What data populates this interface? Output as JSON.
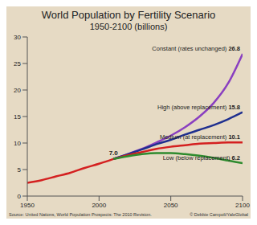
{
  "chart_data": {
    "type": "line",
    "title": "World Population by Fertility Scenario",
    "subtitle": "1950-2100 (billions)",
    "x": [
      1950,
      1960,
      1970,
      1980,
      1990,
      2000,
      2010,
      2020,
      2030,
      2040,
      2050,
      2060,
      2070,
      2080,
      2090,
      2100
    ],
    "series": [
      {
        "color": "#d42020",
        "values": [
          2.5,
          3.0,
          3.7,
          4.4,
          5.3,
          6.1,
          7.0,
          null,
          null,
          null,
          null,
          null,
          null,
          null,
          null,
          null
        ]
      },
      {
        "name": "Constant (rates unchanged)",
        "color": "#8a3fc0",
        "values": [
          null,
          null,
          null,
          null,
          null,
          null,
          7.0,
          7.9,
          8.9,
          10.1,
          11.4,
          13.0,
          15.0,
          17.6,
          21.3,
          26.8
        ]
      },
      {
        "name": "High (above replacement)",
        "color": "#1f2f8f",
        "values": [
          null,
          null,
          null,
          null,
          null,
          null,
          7.0,
          7.9,
          8.8,
          9.8,
          10.6,
          11.6,
          12.5,
          13.4,
          14.5,
          15.8
        ]
      },
      {
        "name": "Medium (at replacement)",
        "color": "#d42020",
        "values": [
          null,
          null,
          null,
          null,
          null,
          null,
          7.0,
          7.7,
          8.3,
          8.9,
          9.3,
          9.6,
          9.9,
          10.0,
          10.1,
          10.1
        ]
      },
      {
        "name": "Low (below replacement)",
        "color": "#2e8b2e",
        "values": [
          null,
          null,
          null,
          null,
          null,
          null,
          7.0,
          7.5,
          7.9,
          8.1,
          8.1,
          7.9,
          7.6,
          7.2,
          6.7,
          6.2
        ]
      }
    ],
    "xlim": [
      1950,
      2100
    ],
    "xticks": [
      1950,
      2000,
      2050,
      2100
    ],
    "ylim": [
      0,
      30
    ],
    "yticks": [
      0,
      5,
      10,
      15,
      20,
      25,
      30
    ],
    "grid": false,
    "annotations": [
      {
        "text": "7.0",
        "x": 2010,
        "y": 7.0
      }
    ],
    "source": "Source: United Nations, World Population Prospects: The 2010 Revision.",
    "credit": "© Debbie Campoli/YaleGlobal"
  }
}
